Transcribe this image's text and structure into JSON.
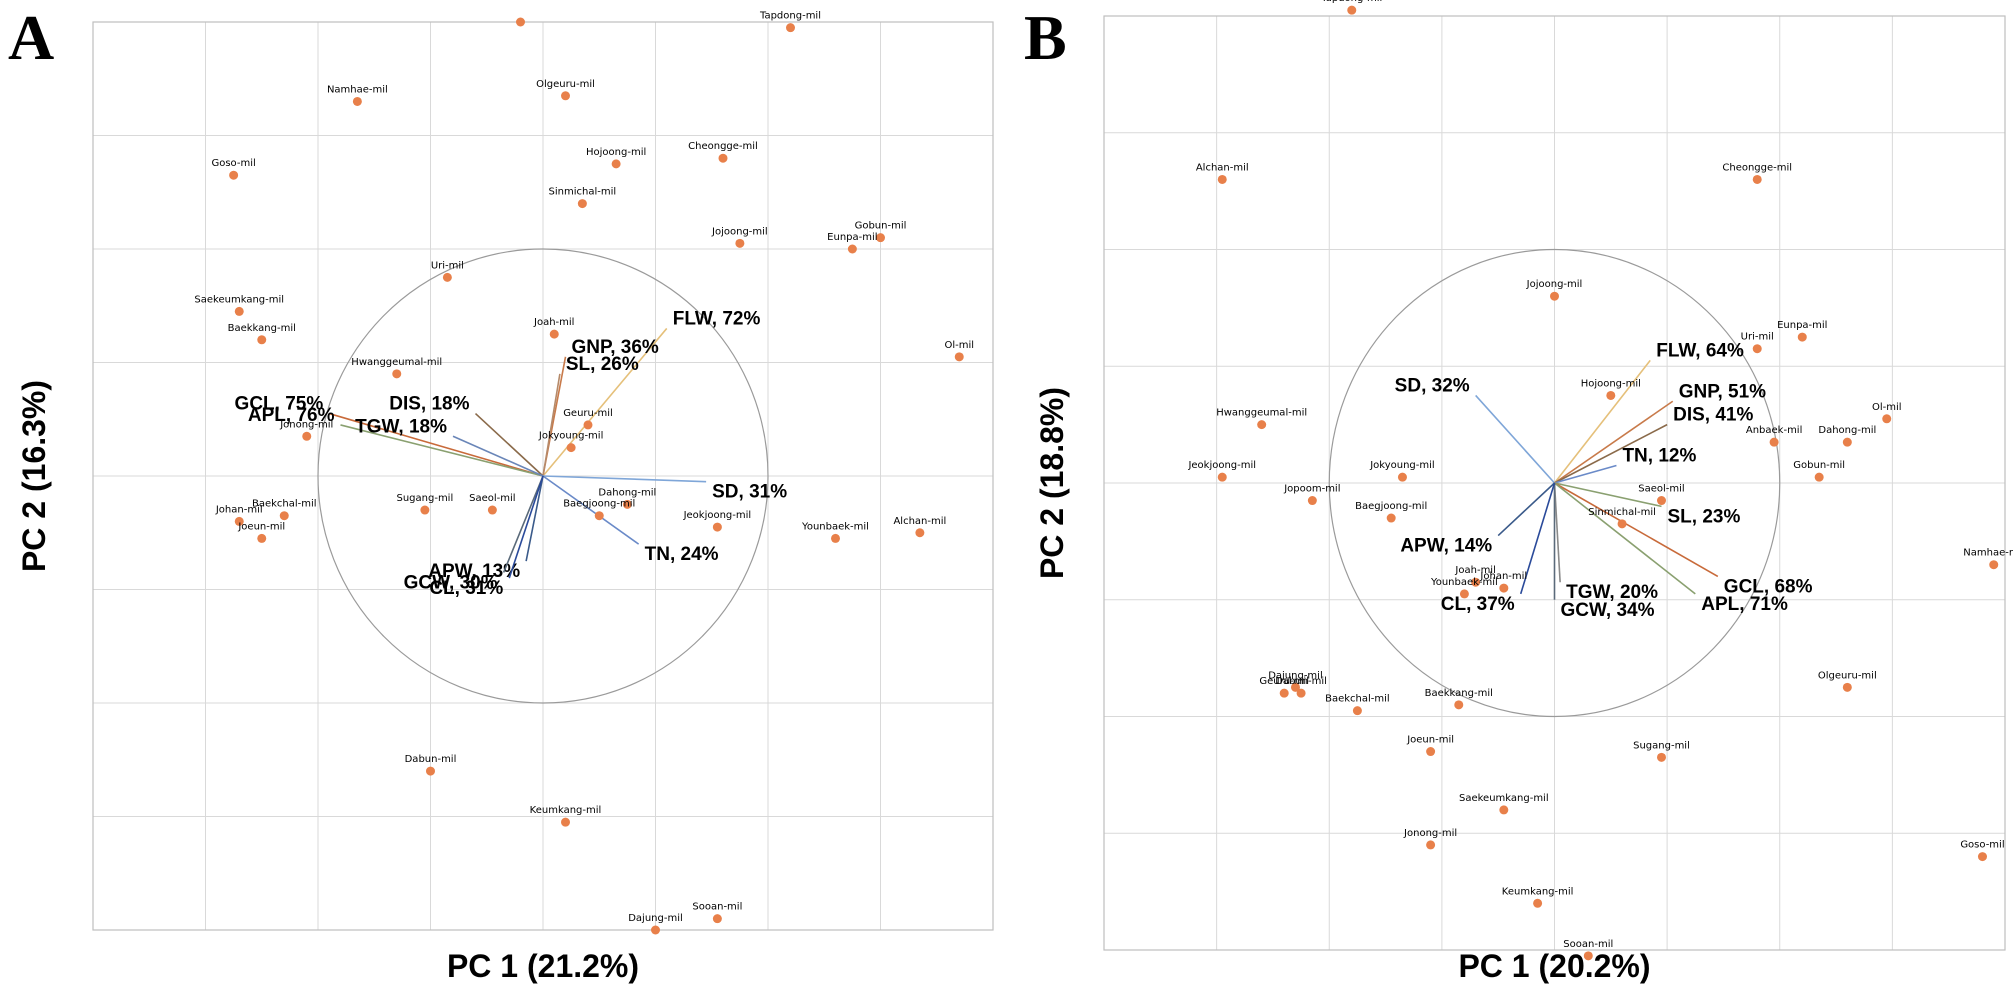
{
  "colors": {
    "point": "#e8804a",
    "grid": "#d9d9d9",
    "circle": "#9a9a9a",
    "frame": "#bfbfbf"
  },
  "chart_data": [
    {
      "type": "scatter",
      "panel": "A",
      "xlabel": "PC 1 (21.2%)",
      "ylabel": "PC 2 (16.3%)",
      "xlim": [
        -4,
        4
      ],
      "ylim": [
        -4,
        4
      ],
      "grid": true,
      "points": [
        {
          "label": "",
          "x": -0.2,
          "y": 4.0
        },
        {
          "label": "Tapdong-mil",
          "x": 2.2,
          "y": 3.95
        },
        {
          "label": "Namhae-mil",
          "x": -1.65,
          "y": 3.3
        },
        {
          "label": "Olgeuru-mil",
          "x": 0.2,
          "y": 3.35
        },
        {
          "label": "Goso-mil",
          "x": -2.75,
          "y": 2.65
        },
        {
          "label": "Hojoong-mil",
          "x": 0.65,
          "y": 2.75
        },
        {
          "label": "Cheongge-mil",
          "x": 1.6,
          "y": 2.8
        },
        {
          "label": "Sinmichal-mil",
          "x": 0.35,
          "y": 2.4
        },
        {
          "label": "Gobun-mil",
          "x": 3.0,
          "y": 2.1
        },
        {
          "label": "Eunpa-mil",
          "x": 2.75,
          "y": 2.0
        },
        {
          "label": "Jojoong-mil",
          "x": 1.75,
          "y": 2.05
        },
        {
          "label": "Uri-mil",
          "x": -0.85,
          "y": 1.75
        },
        {
          "label": "Saekeumkang-mil",
          "x": -2.7,
          "y": 1.45
        },
        {
          "label": "Baekkang-mil",
          "x": -2.5,
          "y": 1.2
        },
        {
          "label": "Joah-mil",
          "x": 0.1,
          "y": 1.25
        },
        {
          "label": "Ol-mil",
          "x": 3.7,
          "y": 1.05
        },
        {
          "label": "Hwanggeumal-mil",
          "x": -1.3,
          "y": 0.9
        },
        {
          "label": "Geuru-mil",
          "x": 0.4,
          "y": 0.45
        },
        {
          "label": "Jonong-mil",
          "x": -2.1,
          "y": 0.35
        },
        {
          "label": "Jokyoung-mil",
          "x": 0.25,
          "y": 0.25
        },
        {
          "label": "Sugang-mil",
          "x": -1.05,
          "y": -0.3
        },
        {
          "label": "Saeol-mil",
          "x": -0.45,
          "y": -0.3
        },
        {
          "label": "Dahong-mil",
          "x": 0.75,
          "y": -0.25
        },
        {
          "label": "Baegjoong-mil",
          "x": 0.5,
          "y": -0.35
        },
        {
          "label": "Jeokjoong-mil",
          "x": 1.55,
          "y": -0.45
        },
        {
          "label": "Younbaek-mil",
          "x": 2.6,
          "y": -0.55
        },
        {
          "label": "Alchan-mil",
          "x": 3.35,
          "y": -0.5
        },
        {
          "label": "Baekchal-mil",
          "x": -2.3,
          "y": -0.35
        },
        {
          "label": "Johan-mil",
          "x": -2.7,
          "y": -0.4
        },
        {
          "label": "Joeun-mil",
          "x": -2.5,
          "y": -0.55
        },
        {
          "label": "Dabun-mil",
          "x": -1.0,
          "y": -2.6
        },
        {
          "label": "Keumkang-mil",
          "x": 0.2,
          "y": -3.05
        },
        {
          "label": "Dajung-mil",
          "x": 1.0,
          "y": -4.0
        },
        {
          "label": "Sooan-mil",
          "x": 1.55,
          "y": -3.9
        }
      ],
      "circle_radius": 2.0,
      "vectors": [
        {
          "label": "FLW, 72%",
          "x": 1.1,
          "y": 1.3,
          "color": "#e5c07a"
        },
        {
          "label": "GNP, 36%",
          "x": 0.2,
          "y": 1.05,
          "color": "#c87a4a"
        },
        {
          "label": "SL, 26%",
          "x": 0.15,
          "y": 0.9,
          "color": "#b58a6a"
        },
        {
          "label": "DIS, 18%",
          "x": -0.6,
          "y": 0.55,
          "color": "#8a6a4a"
        },
        {
          "label": "GCL, 75%",
          "x": -1.9,
          "y": 0.55,
          "color": "#c86a3a"
        },
        {
          "label": "APL, 76%",
          "x": -1.8,
          "y": 0.45,
          "color": "#8aa070"
        },
        {
          "label": "TGW, 18%",
          "x": -0.8,
          "y": 0.35,
          "color": "#6a86b8"
        },
        {
          "label": "SD, 31%",
          "x": 1.45,
          "y": -0.05,
          "color": "#7fa6d8"
        },
        {
          "label": "TN, 24%",
          "x": 0.85,
          "y": -0.6,
          "color": "#6a8ac8"
        },
        {
          "label": "APW, 13%",
          "x": -0.15,
          "y": -0.75,
          "color": "#3a5a8a"
        },
        {
          "label": "GCW, 30%",
          "x": -0.35,
          "y": -0.85,
          "color": "#5a6a7a"
        },
        {
          "label": "CL, 31%",
          "x": -0.3,
          "y": -0.9,
          "color": "#2a4a9a"
        }
      ]
    },
    {
      "type": "scatter",
      "panel": "B",
      "xlabel": "PC 1 (20.2%)",
      "ylabel": "PC 2 (18.8%)",
      "xlim": [
        -4,
        4
      ],
      "ylim": [
        -4,
        4
      ],
      "grid": true,
      "points": [
        {
          "label": "Tapdong-mil",
          "x": -1.8,
          "y": 4.05
        },
        {
          "label": "Alchan-mil",
          "x": -2.95,
          "y": 2.6
        },
        {
          "label": "Cheongge-mil",
          "x": 1.8,
          "y": 2.6
        },
        {
          "label": "Jojoong-mil",
          "x": 0.0,
          "y": 1.6
        },
        {
          "label": "Eunpa-mil",
          "x": 2.2,
          "y": 1.25
        },
        {
          "label": "Uri-mil",
          "x": 1.8,
          "y": 1.15
        },
        {
          "label": "Hojoong-mil",
          "x": 0.5,
          "y": 0.75
        },
        {
          "label": "Ol-mil",
          "x": 2.95,
          "y": 0.55
        },
        {
          "label": "Hwanggeumal-mil",
          "x": -2.6,
          "y": 0.5
        },
        {
          "label": "Dahong-mil",
          "x": 2.6,
          "y": 0.35
        },
        {
          "label": "Anbaek-mil",
          "x": 1.95,
          "y": 0.35
        },
        {
          "label": "Jeokjoong-mil",
          "x": -2.95,
          "y": 0.05
        },
        {
          "label": "Jokyoung-mil",
          "x": -1.35,
          "y": 0.05
        },
        {
          "label": "Gobun-mil",
          "x": 2.35,
          "y": 0.05
        },
        {
          "label": "Jopoom-mil",
          "x": -2.15,
          "y": -0.15
        },
        {
          "label": "Saeol-mil",
          "x": 0.95,
          "y": -0.15
        },
        {
          "label": "Baegjoong-mil",
          "x": -1.45,
          "y": -0.3
        },
        {
          "label": "Sinmichal-mil",
          "x": 0.6,
          "y": -0.35
        },
        {
          "label": "Namhae-mil",
          "x": 3.9,
          "y": -0.7
        },
        {
          "label": "Joah-mil",
          "x": -0.7,
          "y": -0.85
        },
        {
          "label": "Johan-mil",
          "x": -0.45,
          "y": -0.9
        },
        {
          "label": "Younbaek-mil",
          "x": -0.8,
          "y": -0.95
        },
        {
          "label": "Olgeuru-mil",
          "x": 2.6,
          "y": -1.75
        },
        {
          "label": "Dajung-mil",
          "x": -2.3,
          "y": -1.75
        },
        {
          "label": "Dabun-mil",
          "x": -2.25,
          "y": -1.8
        },
        {
          "label": "Geuru-mil",
          "x": -2.4,
          "y": -1.8
        },
        {
          "label": "Baekchal-mil",
          "x": -1.75,
          "y": -1.95
        },
        {
          "label": "Baekkang-mil",
          "x": -0.85,
          "y": -1.9
        },
        {
          "label": "Joeun-mil",
          "x": -1.1,
          "y": -2.3
        },
        {
          "label": "Sugang-mil",
          "x": 0.95,
          "y": -2.35
        },
        {
          "label": "Saekeumkang-mil",
          "x": -0.45,
          "y": -2.8
        },
        {
          "label": "Jonong-mil",
          "x": -1.1,
          "y": -3.1
        },
        {
          "label": "Goso-mil",
          "x": 3.8,
          "y": -3.2
        },
        {
          "label": "Keumkang-mil",
          "x": -0.15,
          "y": -3.6
        },
        {
          "label": "Sooan-mil",
          "x": 0.3,
          "y": -4.05
        }
      ],
      "circle_radius": 2.0,
      "vectors": [
        {
          "label": "FLW, 64%",
          "x": 0.85,
          "y": 1.05,
          "color": "#e5c07a"
        },
        {
          "label": "SD, 32%",
          "x": -0.7,
          "y": 0.75,
          "color": "#7fa6d8"
        },
        {
          "label": "GNP, 51%",
          "x": 1.05,
          "y": 0.7,
          "color": "#c87a4a"
        },
        {
          "label": "DIS, 41%",
          "x": 1.0,
          "y": 0.5,
          "color": "#8a6a4a"
        },
        {
          "label": "TN, 12%",
          "x": 0.55,
          "y": 0.15,
          "color": "#6a8ac8"
        },
        {
          "label": "SL, 23%",
          "x": 0.95,
          "y": -0.2,
          "color": "#8aa070"
        },
        {
          "label": "GCL, 68%",
          "x": 1.45,
          "y": -0.8,
          "color": "#c86a3a"
        },
        {
          "label": "APL, 71%",
          "x": 1.25,
          "y": -0.95,
          "color": "#8aa070"
        },
        {
          "label": "APW, 14%",
          "x": -0.5,
          "y": -0.45,
          "color": "#3a5a8a"
        },
        {
          "label": "TGW, 20%",
          "x": 0.05,
          "y": -0.85,
          "color": "#8a8a8a"
        },
        {
          "label": "GCW, 34%",
          "x": 0.0,
          "y": -1.0,
          "color": "#5a6a7a"
        },
        {
          "label": "CL, 37%",
          "x": -0.3,
          "y": -0.95,
          "color": "#2a4a9a"
        }
      ]
    }
  ]
}
